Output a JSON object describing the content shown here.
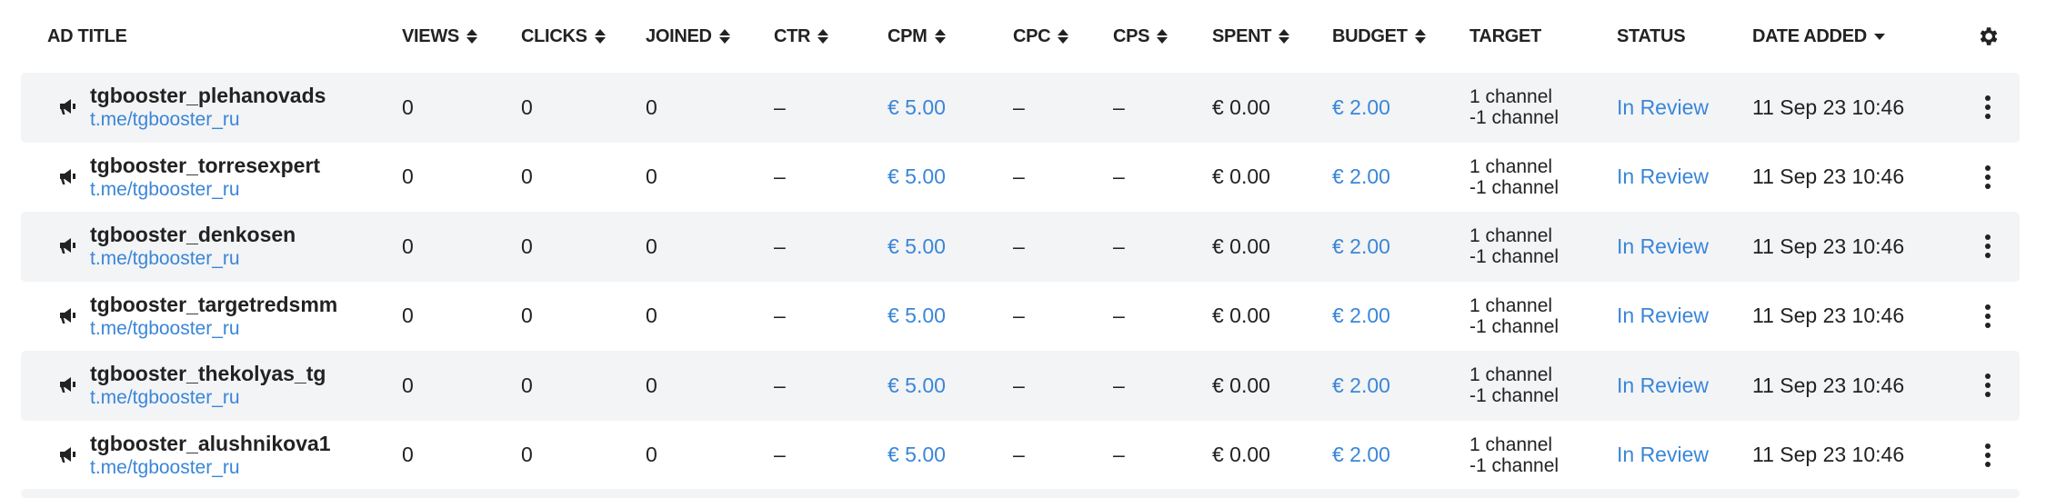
{
  "header": {
    "columns": [
      "AD TITLE",
      "VIEWS",
      "CLICKS",
      "JOINED",
      "CTR",
      "CPM",
      "CPC",
      "CPS",
      "SPENT",
      "BUDGET",
      "TARGET",
      "STATUS",
      "DATE ADDED"
    ],
    "sortable": [
      false,
      true,
      true,
      true,
      true,
      true,
      true,
      true,
      true,
      true,
      false,
      false,
      "desc"
    ],
    "settings_icon": "gear-icon"
  },
  "colors": {
    "link": "#3a86d8",
    "row_alt": "#f3f4f6",
    "text": "#222222"
  },
  "rows": [
    {
      "title": "tgbooster_plehanovads",
      "link": "t.me/tgbooster_ru",
      "views": "0",
      "clicks": "0",
      "joined": "0",
      "ctr": "–",
      "cpm": "€ 5.00",
      "cpc": "–",
      "cps": "–",
      "spent": "€ 0.00",
      "budget": "€ 2.00",
      "target1": "1 channel",
      "target2": "-1 channel",
      "status": "In Review",
      "date": "11 Sep 23 10:46"
    },
    {
      "title": "tgbooster_torresexpert",
      "link": "t.me/tgbooster_ru",
      "views": "0",
      "clicks": "0",
      "joined": "0",
      "ctr": "–",
      "cpm": "€ 5.00",
      "cpc": "–",
      "cps": "–",
      "spent": "€ 0.00",
      "budget": "€ 2.00",
      "target1": "1 channel",
      "target2": "-1 channel",
      "status": "In Review",
      "date": "11 Sep 23 10:46"
    },
    {
      "title": "tgbooster_denkosen",
      "link": "t.me/tgbooster_ru",
      "views": "0",
      "clicks": "0",
      "joined": "0",
      "ctr": "–",
      "cpm": "€ 5.00",
      "cpc": "–",
      "cps": "–",
      "spent": "€ 0.00",
      "budget": "€ 2.00",
      "target1": "1 channel",
      "target2": "-1 channel",
      "status": "In Review",
      "date": "11 Sep 23 10:46"
    },
    {
      "title": "tgbooster_targetredsmm",
      "link": "t.me/tgbooster_ru",
      "views": "0",
      "clicks": "0",
      "joined": "0",
      "ctr": "–",
      "cpm": "€ 5.00",
      "cpc": "–",
      "cps": "–",
      "spent": "€ 0.00",
      "budget": "€ 2.00",
      "target1": "1 channel",
      "target2": "-1 channel",
      "status": "In Review",
      "date": "11 Sep 23 10:46"
    },
    {
      "title": "tgbooster_thekolyas_tg",
      "link": "t.me/tgbooster_ru",
      "views": "0",
      "clicks": "0",
      "joined": "0",
      "ctr": "–",
      "cpm": "€ 5.00",
      "cpc": "–",
      "cps": "–",
      "spent": "€ 0.00",
      "budget": "€ 2.00",
      "target1": "1 channel",
      "target2": "-1 channel",
      "status": "In Review",
      "date": "11 Sep 23 10:46"
    },
    {
      "title": "tgbooster_alushnikova1",
      "link": "t.me/tgbooster_ru",
      "views": "0",
      "clicks": "0",
      "joined": "0",
      "ctr": "–",
      "cpm": "€ 5.00",
      "cpc": "–",
      "cps": "–",
      "spent": "€ 0.00",
      "budget": "€ 2.00",
      "target1": "1 channel",
      "target2": "-1 channel",
      "status": "In Review",
      "date": "11 Sep 23 10:46"
    }
  ]
}
